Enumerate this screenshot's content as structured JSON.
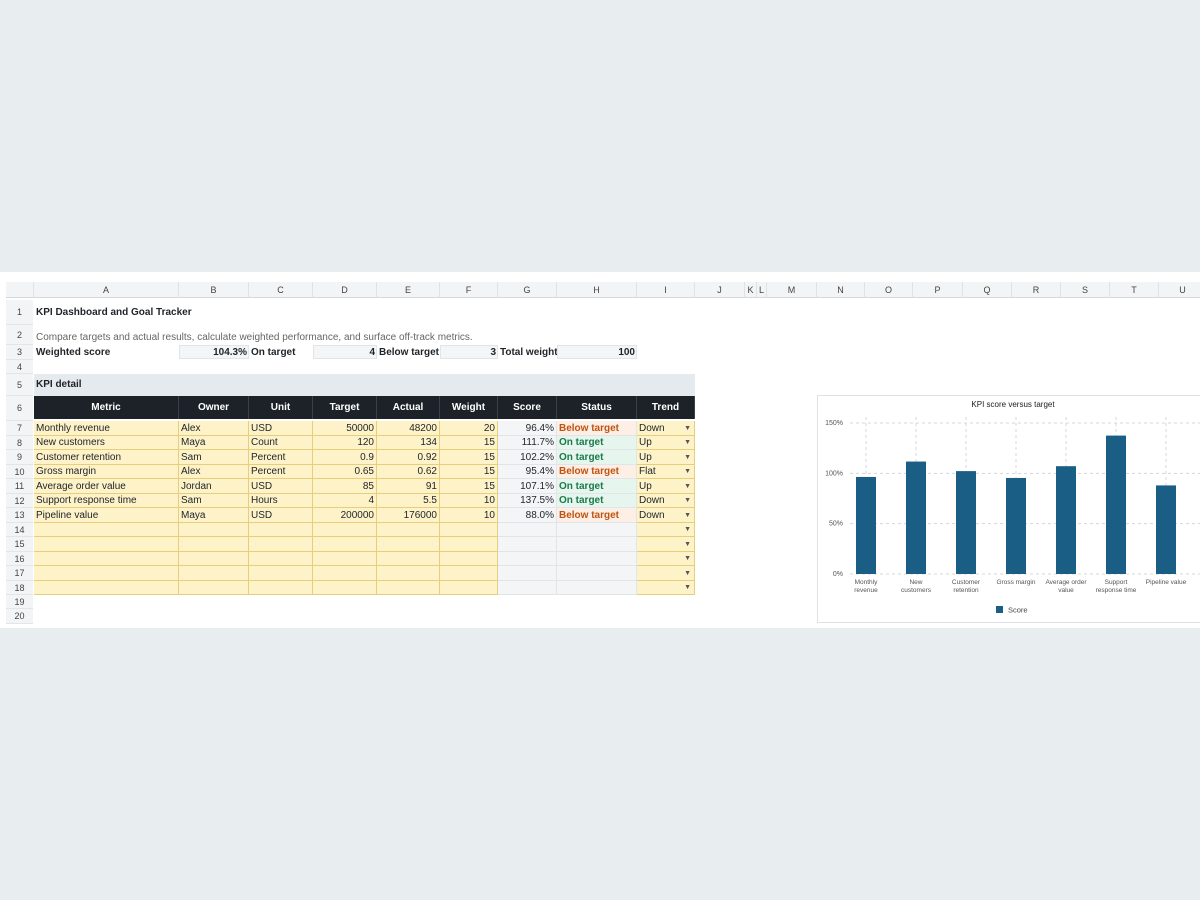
{
  "sheet": {
    "columns": [
      "A",
      "B",
      "C",
      "D",
      "E",
      "F",
      "G",
      "H",
      "I",
      "J",
      "K",
      "L",
      "M",
      "N",
      "O",
      "P",
      "Q",
      "R",
      "S",
      "T",
      "U"
    ],
    "rows": [
      "1",
      "2",
      "3",
      "4",
      "5",
      "6",
      "7",
      "8",
      "9",
      "10",
      "11",
      "12",
      "13",
      "14",
      "15",
      "16",
      "17",
      "18",
      "19",
      "20"
    ],
    "title": "KPI Dashboard and Goal Tracker",
    "subtitle": "Compare targets and actual results, calculate weighted performance, and surface off-track metrics.",
    "summary": {
      "weighted_label": "Weighted score",
      "weighted_value": "104.3%",
      "on_label": "On target",
      "on_value": "4",
      "below_label": "Below target",
      "below_value": "3",
      "total_label": "Total weight",
      "total_value": "100"
    },
    "section_label": "KPI detail",
    "headers": [
      "Metric",
      "Owner",
      "Unit",
      "Target",
      "Actual",
      "Weight",
      "Score",
      "Status",
      "Trend"
    ],
    "kpis": [
      {
        "metric": "Monthly revenue",
        "owner": "Alex",
        "unit": "USD",
        "target": "50000",
        "actual": "48200",
        "weight": "20",
        "score": "96.4%",
        "status": "Below target",
        "trend": "Down"
      },
      {
        "metric": "New customers",
        "owner": "Maya",
        "unit": "Count",
        "target": "120",
        "actual": "134",
        "weight": "15",
        "score": "111.7%",
        "status": "On target",
        "trend": "Up"
      },
      {
        "metric": "Customer retention",
        "owner": "Sam",
        "unit": "Percent",
        "target": "0.9",
        "actual": "0.92",
        "weight": "15",
        "score": "102.2%",
        "status": "On target",
        "trend": "Up"
      },
      {
        "metric": "Gross margin",
        "owner": "Alex",
        "unit": "Percent",
        "target": "0.65",
        "actual": "0.62",
        "weight": "15",
        "score": "95.4%",
        "status": "Below target",
        "trend": "Flat"
      },
      {
        "metric": "Average order value",
        "owner": "Jordan",
        "unit": "USD",
        "target": "85",
        "actual": "91",
        "weight": "15",
        "score": "107.1%",
        "status": "On target",
        "trend": "Up"
      },
      {
        "metric": "Support response time",
        "owner": "Sam",
        "unit": "Hours",
        "target": "4",
        "actual": "5.5",
        "weight": "10",
        "score": "137.5%",
        "status": "On target",
        "trend": "Down"
      },
      {
        "metric": "Pipeline value",
        "owner": "Maya",
        "unit": "USD",
        "target": "200000",
        "actual": "176000",
        "weight": "10",
        "score": "88.0%",
        "status": "Below target",
        "trend": "Down"
      }
    ],
    "dropdown_glyph": "▼"
  },
  "colors": {
    "on_target": "#1b7a4a",
    "below_target": "#c0540f",
    "header_dark": "#1c2228",
    "input_fill": "#fdf2c8",
    "bar": "#1a5e85"
  },
  "chart_data": {
    "type": "bar",
    "title": "KPI score versus target",
    "categories": [
      [
        "Monthly",
        "revenue"
      ],
      [
        "New",
        "customers"
      ],
      [
        "Customer",
        "retention"
      ],
      [
        "Gross margin"
      ],
      [
        "Average order",
        "value"
      ],
      [
        "Support",
        "response time"
      ],
      [
        "Pipeline value"
      ]
    ],
    "series": [
      {
        "name": "Score",
        "values": [
          96.4,
          111.7,
          102.2,
          95.4,
          107.1,
          137.5,
          88.0
        ]
      }
    ],
    "yticks": [
      "0%",
      "50%",
      "100%",
      "150%"
    ],
    "ylim": [
      0,
      150
    ],
    "grid": true,
    "legend": "bottom"
  }
}
